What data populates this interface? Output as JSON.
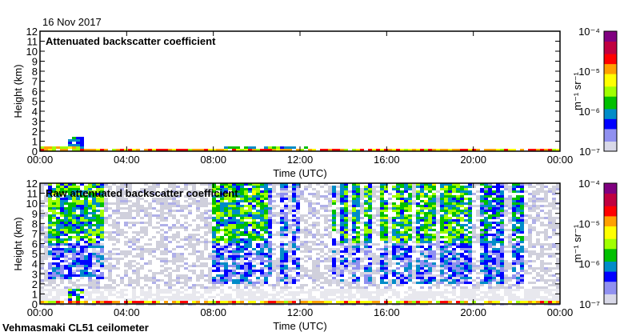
{
  "chart_data": {
    "type": "heatmap",
    "date": "16 Nov 2017",
    "footer": "Vehmasmaki CL51 ceilometer",
    "x_ticks": [
      "00:00",
      "04:00",
      "08:00",
      "12:00",
      "16:00",
      "20:00",
      "00:00"
    ],
    "xlabel": "Time (UTC)",
    "ylabel": "Height (km)",
    "y_ticks": [
      "0",
      "1",
      "2",
      "3",
      "4",
      "5",
      "6",
      "7",
      "8",
      "9",
      "10",
      "11",
      "12"
    ],
    "xlim_hours": [
      0,
      24
    ],
    "ylim_km": [
      0,
      12
    ],
    "colorbar": {
      "label": "m⁻¹ sr⁻¹",
      "ticks": [
        "10⁻⁷",
        "10⁻⁶",
        "10⁻⁵",
        "10⁻⁴"
      ],
      "log_range": [
        -7,
        -4
      ],
      "colors": [
        "#d8d8e8",
        "#9090f0",
        "#0000ff",
        "#008cc8",
        "#00c000",
        "#a0ff00",
        "#ffff00",
        "#ffa000",
        "#ff0000",
        "#c00040",
        "#800080"
      ]
    },
    "panels": [
      {
        "title": "Attenuated backscatter coefficient",
        "background": "none",
        "layers": [
          {
            "start_h": 0.0,
            "end_h": 1.7,
            "bottom_km": 0.0,
            "top_km": 0.6,
            "log_level": -5.2
          },
          {
            "start_h": 1.3,
            "end_h": 2.0,
            "bottom_km": 0.2,
            "top_km": 1.5,
            "log_level": -6.0
          },
          {
            "start_h": 1.7,
            "end_h": 24.0,
            "bottom_km": 0.0,
            "top_km": 0.25,
            "log_level": -5.0
          },
          {
            "start_h": 8.5,
            "end_h": 12.5,
            "bottom_km": 0.1,
            "top_km": 0.6,
            "log_level": -5.8
          },
          {
            "start_h": 16.5,
            "end_h": 24.0,
            "bottom_km": 0.1,
            "top_km": 0.3,
            "log_level": -5.5
          }
        ]
      },
      {
        "title": "Raw attenuated backscatter coefficient",
        "background": "noise",
        "layers": [
          {
            "start_h": 0.3,
            "end_h": 2.9,
            "bottom_km": 6.0,
            "top_km": 12.0,
            "log_level": -5.8
          },
          {
            "start_h": 0.3,
            "end_h": 2.9,
            "bottom_km": 2.5,
            "top_km": 6.0,
            "log_level": -6.4
          },
          {
            "start_h": 7.9,
            "end_h": 10.5,
            "bottom_km": 6.0,
            "top_km": 12.0,
            "log_level": -5.8
          },
          {
            "start_h": 7.9,
            "end_h": 12.0,
            "bottom_km": 2.0,
            "top_km": 6.0,
            "log_level": -6.4
          },
          {
            "start_h": 10.5,
            "end_h": 12.0,
            "bottom_km": 6.0,
            "top_km": 12.0,
            "log_level": -6.5
          },
          {
            "start_h": 13.0,
            "end_h": 15.4,
            "bottom_km": 6.0,
            "top_km": 12.0,
            "log_level": -5.9
          },
          {
            "start_h": 13.0,
            "end_h": 15.4,
            "bottom_km": 2.0,
            "top_km": 6.0,
            "log_level": -6.5
          },
          {
            "start_h": 15.6,
            "end_h": 19.8,
            "bottom_km": 6.0,
            "top_km": 12.0,
            "log_level": -5.8
          },
          {
            "start_h": 15.6,
            "end_h": 22.4,
            "bottom_km": 2.0,
            "top_km": 6.0,
            "log_level": -6.4
          },
          {
            "start_h": 19.8,
            "end_h": 22.4,
            "bottom_km": 6.0,
            "top_km": 12.0,
            "log_level": -6.1
          },
          {
            "start_h": 0.0,
            "end_h": 24.0,
            "bottom_km": 0.0,
            "top_km": 0.3,
            "log_level": -5.0
          },
          {
            "start_h": 1.3,
            "end_h": 2.0,
            "bottom_km": 0.2,
            "top_km": 1.5,
            "log_level": -6.0
          }
        ],
        "gaps_h": [
          3.0,
          3.6,
          5.9,
          6.4,
          10.9,
          11.6,
          12.9,
          13.3,
          13.7,
          14.3,
          14.9,
          15.5,
          16.2,
          17.3,
          18.4,
          20.1,
          21.6
        ]
      }
    ]
  }
}
